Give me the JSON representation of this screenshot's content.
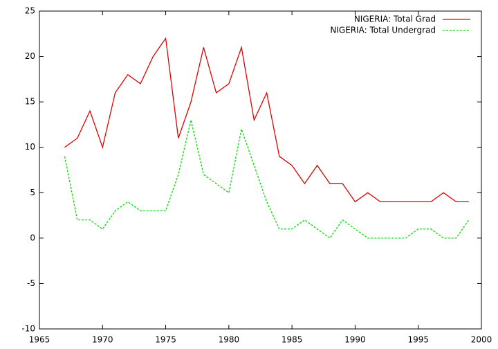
{
  "chart_data": {
    "type": "line",
    "x": [
      1967,
      1968,
      1969,
      1970,
      1971,
      1972,
      1973,
      1974,
      1975,
      1976,
      1977,
      1978,
      1979,
      1980,
      1981,
      1982,
      1983,
      1984,
      1985,
      1986,
      1987,
      1988,
      1989,
      1990,
      1991,
      1992,
      1993,
      1994,
      1995,
      1996,
      1997,
      1998,
      1999
    ],
    "series": [
      {
        "name": "NIGERIA: Total Grad",
        "color": "#e00000",
        "dashed": false,
        "values": [
          10,
          11,
          14,
          10,
          16,
          18,
          17,
          20,
          22,
          11,
          15,
          21,
          16,
          17,
          21,
          13,
          16,
          9,
          8,
          6,
          8,
          6,
          6,
          4,
          5,
          4,
          4,
          4,
          4,
          4,
          5,
          4,
          4
        ]
      },
      {
        "name": "NIGERIA: Total Undergrad",
        "color": "#00e000",
        "dashed": true,
        "values": [
          9,
          2,
          2,
          1,
          3,
          4,
          3,
          3,
          3,
          7,
          13,
          7,
          6,
          5,
          12,
          8,
          4,
          1,
          1,
          2,
          1,
          0,
          2,
          1,
          0,
          0,
          0,
          0,
          1,
          1,
          0,
          0,
          2
        ]
      }
    ],
    "xlim": [
      1965,
      2000
    ],
    "xticks": [
      1965,
      1970,
      1975,
      1980,
      1985,
      1990,
      1995,
      2000
    ],
    "ylim": [
      -10,
      25
    ],
    "yticks": [
      -10,
      -5,
      0,
      5,
      10,
      15,
      20,
      25
    ],
    "legend": "top-right"
  }
}
